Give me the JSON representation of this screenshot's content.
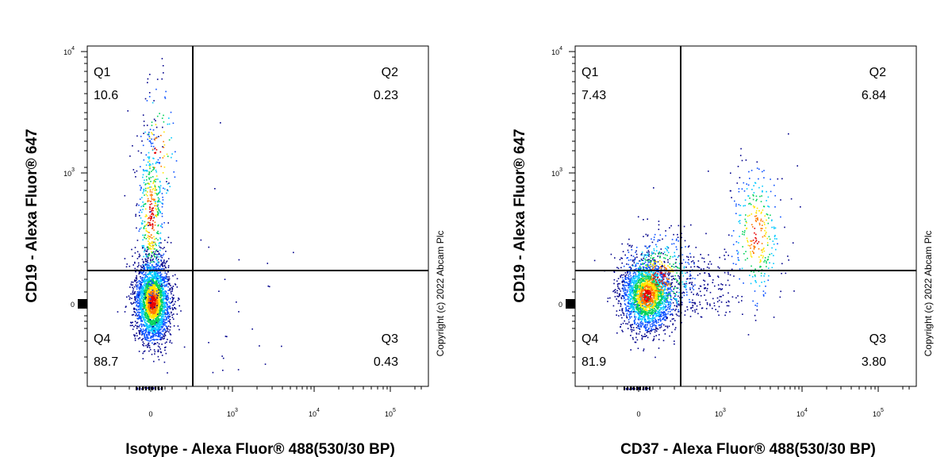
{
  "chart_data": [
    {
      "type": "scatter",
      "xlabel": "Isotype - Alexa Fluor® 488(530/30 BP)",
      "ylabel": "CD19 - Alexa Fluor® 647",
      "x_ticks": [
        {
          "base": "0",
          "exp": ""
        },
        {
          "base": "10",
          "exp": "3"
        },
        {
          "base": "10",
          "exp": "4"
        },
        {
          "base": "10",
          "exp": "5"
        }
      ],
      "y_ticks": [
        {
          "base": "0",
          "exp": ""
        },
        {
          "base": "10",
          "exp": "3"
        },
        {
          "base": "10",
          "exp": "4"
        }
      ],
      "quadrants": [
        {
          "name": "Q1",
          "value": "10.6"
        },
        {
          "name": "Q2",
          "value": "0.23"
        },
        {
          "name": "Q3",
          "value": "0.43"
        },
        {
          "name": "Q4",
          "value": "88.7"
        }
      ],
      "copyright": "Copyright (c) 2022 Abcam Plc",
      "density_colors": [
        "#00008b",
        "#0a50ff",
        "#00c8ff",
        "#00d25a",
        "#ffe600",
        "#ff7800",
        "#e60000"
      ]
    },
    {
      "type": "scatter",
      "xlabel": "CD37 - Alexa Fluor® 488(530/30 BP)",
      "ylabel": "CD19 - Alexa Fluor® 647",
      "x_ticks": [
        {
          "base": "0",
          "exp": ""
        },
        {
          "base": "10",
          "exp": "3"
        },
        {
          "base": "10",
          "exp": "4"
        },
        {
          "base": "10",
          "exp": "5"
        }
      ],
      "y_ticks": [
        {
          "base": "0",
          "exp": ""
        },
        {
          "base": "10",
          "exp": "3"
        },
        {
          "base": "10",
          "exp": "4"
        }
      ],
      "quadrants": [
        {
          "name": "Q1",
          "value": "7.43"
        },
        {
          "name": "Q2",
          "value": "6.84"
        },
        {
          "name": "Q3",
          "value": "3.80"
        },
        {
          "name": "Q4",
          "value": "81.9"
        }
      ],
      "copyright": "Copyright (c) 2022 Abcam Plc",
      "density_colors": [
        "#00008b",
        "#0a50ff",
        "#00c8ff",
        "#00d25a",
        "#ffe600",
        "#ff7800",
        "#e60000"
      ]
    }
  ]
}
